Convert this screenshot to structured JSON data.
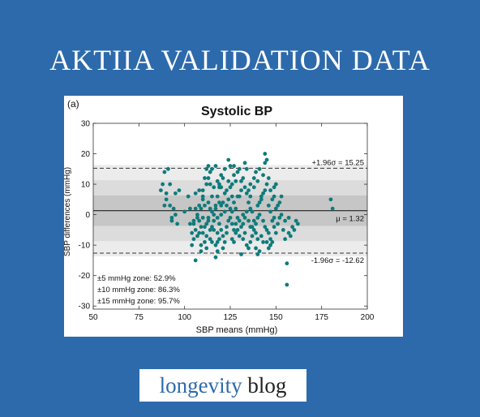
{
  "page": {
    "headline": "AKTIIA VALIDATION DATA",
    "background_color": "#2d6aab",
    "brand": {
      "accent_word": "longevity",
      "rest_word": "blog",
      "accent_color": "#2d6aab"
    }
  },
  "chart_data": {
    "type": "scatter",
    "panel_label": "(a)",
    "title": "Systolic BP",
    "xlabel": "SBP means (mmHg)",
    "ylabel": "SBP differences (mmHg)",
    "xlim": [
      50,
      200
    ],
    "ylim": [
      -31,
      30
    ],
    "xticks": [
      "50",
      "75",
      "100",
      "125",
      "150",
      "175",
      "200"
    ],
    "yticks": [
      "-30",
      "-20",
      "-10",
      "0",
      "10",
      "20",
      "30"
    ],
    "grid": false,
    "point_color": "#0f7b7b",
    "mean_line": {
      "value": 1.32,
      "label": "μ = 1.32"
    },
    "upper_loa": {
      "value": 15.25,
      "label": "+1.96σ = 15.25"
    },
    "lower_loa": {
      "value": -12.62,
      "label": "-1.96σ = -12.62"
    },
    "zones": [
      {
        "halfwidth": 15,
        "color": "#ececec"
      },
      {
        "halfwidth": 10,
        "color": "#dcdcdc"
      },
      {
        "halfwidth": 5,
        "color": "#c6c6c6"
      }
    ],
    "annotations": [
      "±5 mmHg zone: 52.9%",
      "±10 mmHg zone: 86.3%",
      "±15 mmHg zone: 95.7%"
    ],
    "points": [
      [
        88,
        10
      ],
      [
        89,
        14
      ],
      [
        91,
        15
      ],
      [
        87,
        8
      ],
      [
        90,
        5
      ],
      [
        92,
        3
      ],
      [
        89,
        3
      ],
      [
        94,
        2
      ],
      [
        93,
        -1
      ],
      [
        95,
        0
      ],
      [
        96,
        -3
      ],
      [
        92,
        10
      ],
      [
        95,
        7
      ],
      [
        97,
        8
      ],
      [
        100,
        1
      ],
      [
        103,
        2
      ],
      [
        105,
        -2
      ],
      [
        106,
        7
      ],
      [
        108,
        8
      ],
      [
        110,
        6
      ],
      [
        111,
        12
      ],
      [
        112,
        15
      ],
      [
        113,
        16
      ],
      [
        114,
        10
      ],
      [
        109,
        2
      ],
      [
        107,
        0
      ],
      [
        110,
        -1
      ],
      [
        112,
        -3
      ],
      [
        113,
        -2
      ],
      [
        115,
        -4
      ],
      [
        116,
        -5
      ],
      [
        118,
        -6
      ],
      [
        105,
        -3
      ],
      [
        106,
        -5
      ],
      [
        105,
        -8
      ],
      [
        104,
        -10
      ],
      [
        107,
        -7
      ],
      [
        108,
        -6
      ],
      [
        109,
        -10
      ],
      [
        111,
        -4
      ],
      [
        112,
        -7
      ],
      [
        114,
        -8
      ],
      [
        115,
        -9
      ],
      [
        117,
        -10
      ],
      [
        109,
        -12
      ],
      [
        106,
        -15
      ],
      [
        110,
        5
      ],
      [
        111,
        3
      ],
      [
        113,
        4
      ],
      [
        114,
        2
      ],
      [
        116,
        0
      ],
      [
        117,
        3
      ],
      [
        118,
        6
      ],
      [
        119,
        9
      ],
      [
        120,
        13
      ],
      [
        121,
        12
      ],
      [
        122,
        7
      ],
      [
        123,
        8
      ],
      [
        124,
        5
      ],
      [
        125,
        16
      ],
      [
        124,
        18
      ],
      [
        126,
        10
      ],
      [
        127,
        4
      ],
      [
        128,
        2
      ],
      [
        125,
        -1
      ],
      [
        126,
        -3
      ],
      [
        127,
        -5
      ],
      [
        123,
        -4
      ],
      [
        121,
        -7
      ],
      [
        120,
        -5
      ],
      [
        119,
        -3
      ],
      [
        118,
        -1
      ],
      [
        120,
        0
      ],
      [
        122,
        1
      ],
      [
        129,
        14
      ],
      [
        130,
        15
      ],
      [
        131,
        11
      ],
      [
        132,
        12
      ],
      [
        133,
        9
      ],
      [
        134,
        7
      ],
      [
        133,
        17
      ],
      [
        134,
        15
      ],
      [
        135,
        4
      ],
      [
        136,
        2
      ],
      [
        137,
        1
      ],
      [
        130,
        -2
      ],
      [
        131,
        -4
      ],
      [
        132,
        -8
      ],
      [
        133,
        -6
      ],
      [
        134,
        -10
      ],
      [
        135,
        -11
      ],
      [
        136,
        -9
      ],
      [
        138,
        -5
      ],
      [
        139,
        -3
      ],
      [
        140,
        -1
      ],
      [
        141,
        0
      ],
      [
        139,
        -6
      ],
      [
        140,
        -8
      ],
      [
        141,
        -12
      ],
      [
        142,
        -7
      ],
      [
        137,
        -4
      ],
      [
        138,
        -2
      ],
      [
        142,
        6
      ],
      [
        143,
        7
      ],
      [
        144,
        8
      ],
      [
        145,
        10
      ],
      [
        142,
        5
      ],
      [
        138,
        9
      ],
      [
        140,
        11
      ],
      [
        141,
        15
      ],
      [
        143,
        13
      ],
      [
        144,
        17
      ],
      [
        145,
        18
      ],
      [
        146,
        12
      ],
      [
        147,
        8
      ],
      [
        148,
        5
      ],
      [
        149,
        9
      ],
      [
        150,
        10
      ],
      [
        146,
        3
      ],
      [
        147,
        1
      ],
      [
        148,
        -2
      ],
      [
        149,
        -4
      ],
      [
        150,
        -6
      ],
      [
        151,
        -3
      ],
      [
        152,
        -1
      ],
      [
        153,
        0
      ],
      [
        154,
        -5
      ],
      [
        155,
        -2
      ],
      [
        146,
        -6
      ],
      [
        147,
        -8
      ],
      [
        148,
        -9
      ],
      [
        143,
        -2
      ],
      [
        144,
        -4
      ],
      [
        145,
        -5
      ],
      [
        144,
        20
      ],
      [
        149,
        6
      ],
      [
        151,
        3
      ],
      [
        138,
        12
      ],
      [
        139,
        14
      ],
      [
        136,
        6
      ],
      [
        137,
        -7
      ],
      [
        130,
        6
      ],
      [
        131,
        8
      ],
      [
        128,
        11
      ],
      [
        127,
        13
      ],
      [
        126,
        6
      ],
      [
        125,
        9
      ],
      [
        124,
        -2
      ],
      [
        123,
        -6
      ],
      [
        122,
        -9
      ],
      [
        121,
        -11
      ],
      [
        119,
        -8
      ],
      [
        118,
        -12
      ],
      [
        117,
        2
      ],
      [
        116,
        -2
      ],
      [
        115,
        1
      ],
      [
        114,
        -5
      ],
      [
        113,
        -1
      ],
      [
        111,
        -9
      ],
      [
        112,
        -11
      ],
      [
        110,
        -6
      ],
      [
        109,
        -4
      ],
      [
        108,
        -2
      ],
      [
        107,
        -1
      ],
      [
        106,
        2
      ],
      [
        115,
        6
      ],
      [
        116,
        9
      ],
      [
        119,
        4
      ],
      [
        120,
        3
      ],
      [
        126,
        -8
      ],
      [
        127,
        -9
      ],
      [
        128,
        -6
      ],
      [
        129,
        -5
      ],
      [
        130,
        -7
      ],
      [
        132,
        -3
      ],
      [
        133,
        -1
      ],
      [
        134,
        1
      ],
      [
        135,
        -2
      ],
      [
        136,
        -4
      ],
      [
        110,
        8
      ],
      [
        112,
        10
      ],
      [
        113,
        12
      ],
      [
        114,
        14
      ],
      [
        115,
        15
      ],
      [
        117,
        16
      ],
      [
        118,
        11
      ],
      [
        122,
        15
      ],
      [
        124,
        11
      ],
      [
        127,
        16
      ],
      [
        129,
        6
      ],
      [
        135,
        8
      ],
      [
        136,
        10
      ],
      [
        140,
        3
      ],
      [
        141,
        4
      ],
      [
        143,
        -9
      ],
      [
        140,
        -13
      ],
      [
        139,
        -11
      ],
      [
        156,
        -16
      ],
      [
        156,
        -23
      ],
      [
        155,
        -8
      ],
      [
        157,
        -6
      ],
      [
        158,
        -7
      ],
      [
        159,
        -4
      ],
      [
        160,
        -5
      ],
      [
        161,
        -2
      ],
      [
        162,
        -3
      ],
      [
        157,
        -1
      ],
      [
        180,
        5
      ],
      [
        181,
        2
      ],
      [
        90,
        7
      ],
      [
        93,
        -2
      ],
      [
        102,
        6
      ],
      [
        103,
        -3
      ],
      [
        104,
        -6
      ],
      [
        108,
        3
      ],
      [
        145,
        -9
      ],
      [
        146,
        -11
      ],
      [
        147,
        -10
      ],
      [
        149,
        -1
      ],
      [
        150,
        2
      ],
      [
        152,
        4
      ],
      [
        153,
        6
      ],
      [
        131,
        -13
      ],
      [
        132,
        0
      ],
      [
        129,
        -1
      ],
      [
        128,
        -3
      ],
      [
        126,
        1
      ],
      [
        125,
        2
      ],
      [
        123,
        3
      ],
      [
        121,
        4
      ],
      [
        120,
        9
      ],
      [
        119,
        10
      ],
      [
        118,
        -9
      ],
      [
        117,
        -14
      ]
    ]
  }
}
